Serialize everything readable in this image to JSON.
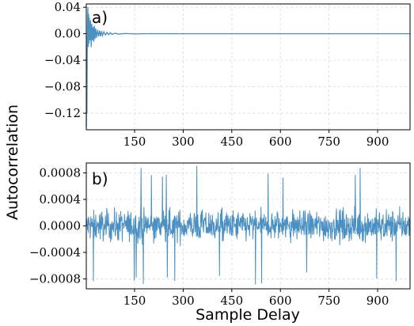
{
  "chart_data": {
    "type": "line",
    "shared_ylabel": "Autocorrelation",
    "shared_xlabel": "Sample Delay",
    "line_color": "#4a90c2",
    "grid": true,
    "panels": [
      {
        "panel_label": "a)",
        "xlim": [
          1,
          1000
        ],
        "ylim": [
          -0.145,
          0.045
        ],
        "xticks": [
          150,
          300,
          450,
          600,
          750,
          900
        ],
        "xtick_labels": [
          "150",
          "300",
          "450",
          "600",
          "750",
          "900"
        ],
        "yticks": [
          0.04,
          0.0,
          -0.04,
          -0.08,
          -0.12
        ],
        "ytick_labels": [
          "0.04",
          "0.00",
          "−0.04",
          "−0.08",
          "−0.12"
        ],
        "series": [
          {
            "description_free": true,
            "x": [
              1,
              2,
              3,
              4,
              5,
              6,
              7,
              8,
              9,
              10,
              12,
              14,
              16,
              18,
              20,
              22,
              24,
              26,
              28,
              30,
              33,
              36,
              39,
              42,
              45,
              48,
              51,
              55,
              60,
              65,
              70,
              75,
              80,
              90,
              100,
              120,
              150,
              200,
              300,
              400,
              500,
              600,
              700,
              800,
              900,
              1000
            ],
            "y": [
              -0.14,
              -0.1,
              -0.12,
              -0.02,
              0.02,
              0.04,
              -0.02,
              0.03,
              -0.015,
              0.025,
              -0.01,
              0.02,
              -0.02,
              0.015,
              -0.01,
              0.01,
              -0.012,
              0.012,
              -0.008,
              0.008,
              -0.006,
              0.006,
              -0.004,
              0.005,
              -0.004,
              0.004,
              -0.003,
              0.003,
              -0.002,
              0.002,
              -0.0015,
              0.0015,
              -0.001,
              0.0008,
              -0.0006,
              0.0004,
              -0.0003,
              0.0002,
              0.0,
              0.0,
              0.0,
              0.0,
              0.0,
              0.0,
              0.0,
              0.0
            ]
          }
        ]
      },
      {
        "panel_label": "b)",
        "xlim": [
          1,
          1000
        ],
        "ylim": [
          -0.00095,
          0.00095
        ],
        "xticks": [
          150,
          300,
          450,
          600,
          750,
          900
        ],
        "xtick_labels": [
          "150",
          "300",
          "450",
          "600",
          "750",
          "900"
        ],
        "yticks": [
          0.0008,
          0.0004,
          0.0,
          -0.0004,
          -0.0008
        ],
        "ytick_labels": [
          "0.0008",
          "0.0004",
          "0.0000",
          "−0.0004",
          "−0.0008"
        ],
        "series": [
          {
            "noise_amplitude": 0.00025,
            "spike_max": 0.00092,
            "spike_min": -0.0009
          }
        ]
      }
    ]
  }
}
